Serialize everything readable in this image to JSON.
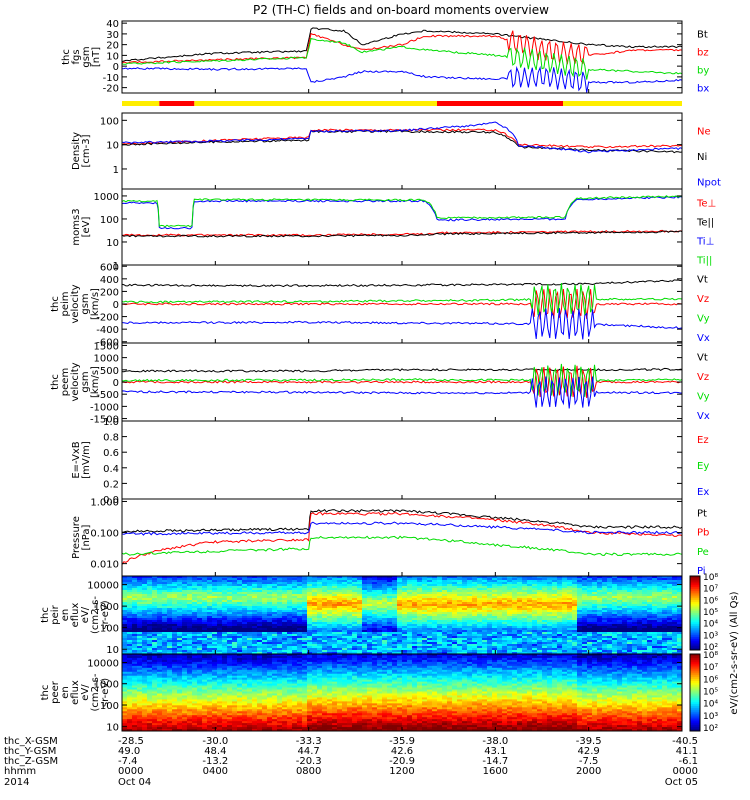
{
  "title": "P2 (TH-C) fields and on-board moments overview",
  "colors": {
    "black": "#000000",
    "red": "#ff0000",
    "green": "#00dd00",
    "blue": "#0000ff",
    "yellow": "#ffee00"
  },
  "panels": [
    {
      "id": "fgs",
      "ylabel": [
        "thc",
        "fgs",
        "gsm",
        "[nT]"
      ],
      "ticks": [
        "40",
        "30",
        "20",
        "10",
        "0",
        "-10",
        "-20"
      ],
      "legend": [
        {
          "text": "Bt",
          "color": "black"
        },
        {
          "text": "bz",
          "color": "red"
        },
        {
          "text": "by",
          "color": "green"
        },
        {
          "text": "bx",
          "color": "blue"
        }
      ]
    },
    {
      "id": "density",
      "ylabel": [
        "Density",
        "[cm-3]"
      ],
      "ticks": [
        "100",
        "10",
        "1"
      ],
      "legend": [
        {
          "text": "Ne",
          "color": "red"
        },
        {
          "text": "Ni",
          "color": "black"
        },
        {
          "text": "Npot",
          "color": "blue"
        }
      ]
    },
    {
      "id": "temp",
      "ylabel": [
        "moms3",
        "[eV]"
      ],
      "ticks": [
        "1000",
        "100",
        "10",
        "1"
      ],
      "legend": [
        {
          "text": "Te⊥",
          "color": "red"
        },
        {
          "text": "Te||",
          "color": "black"
        },
        {
          "text": "Ti⊥",
          "color": "blue"
        },
        {
          "text": "Ti||",
          "color": "green"
        }
      ]
    },
    {
      "id": "peim",
      "ylabel": [
        "thc",
        "peim",
        "velocity",
        "gsm",
        "[km/s]"
      ],
      "ticks": [
        "600",
        "400",
        "200",
        "0",
        "-200",
        "-400",
        "-600"
      ],
      "legend": [
        {
          "text": "Vt",
          "color": "black"
        },
        {
          "text": "Vz",
          "color": "red"
        },
        {
          "text": "Vy",
          "color": "green"
        },
        {
          "text": "Vx",
          "color": "blue"
        }
      ]
    },
    {
      "id": "peem",
      "ylabel": [
        "thc",
        "peem",
        "velocity",
        "gsm",
        "[km/s]"
      ],
      "ticks": [
        "1500",
        "1000",
        "500",
        "0",
        "-500",
        "-1000",
        "-1500"
      ],
      "legend": [
        {
          "text": "Vt",
          "color": "black"
        },
        {
          "text": "Vz",
          "color": "red"
        },
        {
          "text": "Vy",
          "color": "green"
        },
        {
          "text": "Vx",
          "color": "blue"
        }
      ]
    },
    {
      "id": "efield",
      "ylabel": [
        "E=-VxB",
        "[mV/m]"
      ],
      "ticks": [
        "1.0",
        "0.8",
        "0.6",
        "0.4",
        "0.2",
        "0.0"
      ],
      "legend": [
        {
          "text": "Ez",
          "color": "red"
        },
        {
          "text": "Ey",
          "color": "green"
        },
        {
          "text": "Ex",
          "color": "blue"
        }
      ]
    },
    {
      "id": "pressure",
      "ylabel": [
        "Pressure",
        "[nPa]"
      ],
      "ticks": [
        "1.000",
        "0.100",
        "0.010"
      ],
      "legend": [
        {
          "text": "Pt",
          "color": "black"
        },
        {
          "text": "Pb",
          "color": "red"
        },
        {
          "text": "Pe",
          "color": "green"
        },
        {
          "text": "Pi",
          "color": "blue"
        }
      ]
    },
    {
      "id": "peir",
      "ylabel": [
        "thc",
        "peir",
        "en",
        "eflux",
        "eV/",
        "(cm2-s-",
        "sr-eV)"
      ],
      "ticks": [
        "10000",
        "1000",
        "100",
        "10"
      ],
      "legend": []
    },
    {
      "id": "peer",
      "ylabel": [
        "thc",
        "peer",
        "en",
        "eflux",
        "eV/",
        "(cm2-s-",
        "sr-eV)"
      ],
      "ticks": [
        "10000",
        "1000",
        "100",
        "10"
      ],
      "legend": []
    }
  ],
  "colorbar": {
    "top_labels": [
      "10⁸",
      "10⁷",
      "10⁶",
      "10⁵",
      "10⁴",
      "10³",
      "10²"
    ],
    "bottom_labels": [
      "10⁸",
      "10⁷",
      "10⁶",
      "10⁵",
      "10⁴",
      "10³",
      "10²"
    ],
    "unit": "eV/(cm2-s-sr-eV) (All Qs)"
  },
  "xaxis": {
    "row_labels": [
      "thc_X-GSM",
      "thc_Y-GSM",
      "thc_Z-GSM",
      "hhmm",
      "2014"
    ],
    "columns": [
      {
        "x": "-28.5",
        "y": "49.0",
        "z": "-7.4",
        "hhmm": "0000",
        "date": "Oct 04"
      },
      {
        "x": "-30.0",
        "y": "48.4",
        "z": "-13.2",
        "hhmm": "0400",
        "date": ""
      },
      {
        "x": "-33.3",
        "y": "44.7",
        "z": "-20.3",
        "hhmm": "0800",
        "date": ""
      },
      {
        "x": "-35.9",
        "y": "42.6",
        "z": "-20.9",
        "hhmm": "1200",
        "date": ""
      },
      {
        "x": "-38.0",
        "y": "43.1",
        "z": "-14.7",
        "hhmm": "1600",
        "date": ""
      },
      {
        "x": "-39.5",
        "y": "42.9",
        "z": "-7.5",
        "hhmm": "2000",
        "date": ""
      },
      {
        "x": "-40.5",
        "y": "41.1",
        "z": "-6.1",
        "hhmm": "0000",
        "date": "Oct 05"
      }
    ]
  },
  "chart_data": {
    "type": "line",
    "title": "P2 (TH-C) fields and on-board moments overview",
    "x_unit": "hours since 2014-10-04 00:00",
    "xlim": [
      0,
      24
    ],
    "series": [
      {
        "panel": "fgs",
        "name": "Bt",
        "points": [
          [
            0,
            5
          ],
          [
            4,
            12
          ],
          [
            7.9,
            14
          ],
          [
            8.1,
            35
          ],
          [
            9.5,
            33
          ],
          [
            10.3,
            20
          ],
          [
            12,
            30
          ],
          [
            13,
            33
          ],
          [
            16,
            30
          ],
          [
            18,
            25
          ],
          [
            20,
            20
          ],
          [
            22,
            18
          ],
          [
            24,
            18
          ]
        ]
      },
      {
        "panel": "fgs",
        "name": "bz",
        "points": [
          [
            0,
            3
          ],
          [
            4,
            6
          ],
          [
            7.9,
            8
          ],
          [
            8.1,
            30
          ],
          [
            9.5,
            20
          ],
          [
            10.3,
            15
          ],
          [
            12,
            20
          ],
          [
            13,
            28
          ],
          [
            16,
            28
          ],
          [
            18,
            15
          ],
          [
            20,
            10
          ],
          [
            22,
            15
          ],
          [
            24,
            15
          ]
        ]
      },
      {
        "panel": "fgs",
        "name": "by",
        "points": [
          [
            0,
            2
          ],
          [
            4,
            5
          ],
          [
            7.9,
            8
          ],
          [
            8.1,
            25
          ],
          [
            9.5,
            22
          ],
          [
            10.3,
            13
          ],
          [
            12,
            18
          ],
          [
            13,
            15
          ],
          [
            16,
            10
          ],
          [
            18,
            5
          ],
          [
            20,
            -3
          ],
          [
            22,
            -5
          ],
          [
            24,
            -7
          ]
        ]
      },
      {
        "panel": "fgs",
        "name": "bx",
        "points": [
          [
            0,
            -2
          ],
          [
            4,
            -3
          ],
          [
            7.9,
            -2
          ],
          [
            8.1,
            -15
          ],
          [
            9.5,
            -10
          ],
          [
            10.3,
            -5
          ],
          [
            12,
            -5
          ],
          [
            13,
            -10
          ],
          [
            16,
            -12
          ],
          [
            18,
            -10
          ],
          [
            20,
            -15
          ],
          [
            22,
            -15
          ],
          [
            24,
            -13
          ]
        ]
      },
      {
        "panel": "density",
        "name": "Ne",
        "points": [
          [
            0,
            10
          ],
          [
            4,
            15
          ],
          [
            8,
            20
          ],
          [
            8.1,
            40
          ],
          [
            12,
            40
          ],
          [
            16,
            40
          ],
          [
            17,
            10
          ],
          [
            20,
            8
          ],
          [
            24,
            9
          ]
        ]
      },
      {
        "panel": "density",
        "name": "Ni",
        "points": [
          [
            0,
            10
          ],
          [
            4,
            13
          ],
          [
            8,
            15
          ],
          [
            8.1,
            35
          ],
          [
            12,
            35
          ],
          [
            16,
            32
          ],
          [
            17,
            8
          ],
          [
            20,
            6
          ],
          [
            24,
            5
          ]
        ]
      },
      {
        "panel": "density",
        "name": "Npot",
        "points": [
          [
            0,
            12
          ],
          [
            4,
            14
          ],
          [
            8,
            18
          ],
          [
            8.1,
            35
          ],
          [
            12,
            38
          ],
          [
            15,
            60
          ],
          [
            16,
            80
          ],
          [
            17,
            9
          ],
          [
            20,
            5
          ],
          [
            24,
            7
          ]
        ]
      },
      {
        "panel": "temp",
        "name": "Te⊥",
        "points": [
          [
            0,
            20
          ],
          [
            8,
            20
          ],
          [
            13,
            22
          ],
          [
            13.5,
            25
          ],
          [
            24,
            30
          ]
        ]
      },
      {
        "panel": "temp",
        "name": "Te||",
        "points": [
          [
            0,
            18
          ],
          [
            8,
            18
          ],
          [
            13,
            20
          ],
          [
            13.5,
            22
          ],
          [
            24,
            28
          ]
        ]
      },
      {
        "panel": "temp",
        "name": "Ti⊥",
        "points": [
          [
            0,
            500
          ],
          [
            1.5,
            500
          ],
          [
            1.6,
            40
          ],
          [
            3,
            40
          ],
          [
            3.1,
            600
          ],
          [
            13,
            600
          ],
          [
            13.5,
            90
          ],
          [
            19,
            100
          ],
          [
            19.5,
            700
          ],
          [
            24,
            900
          ]
        ]
      },
      {
        "panel": "temp",
        "name": "Ti||",
        "points": [
          [
            0,
            600
          ],
          [
            1.5,
            600
          ],
          [
            1.6,
            50
          ],
          [
            3,
            50
          ],
          [
            3.1,
            700
          ],
          [
            13,
            650
          ],
          [
            13.5,
            110
          ],
          [
            19,
            120
          ],
          [
            19.5,
            800
          ],
          [
            24,
            950
          ]
        ]
      },
      {
        "panel": "peim",
        "name": "Vt",
        "points": [
          [
            0,
            300
          ],
          [
            8,
            290
          ],
          [
            12,
            300
          ],
          [
            16,
            310
          ],
          [
            20,
            320
          ],
          [
            24,
            380
          ]
        ]
      },
      {
        "panel": "peim",
        "name": "Vz",
        "points": [
          [
            0,
            0
          ],
          [
            8,
            0
          ],
          [
            12,
            0
          ],
          [
            16,
            0
          ],
          [
            20,
            0
          ],
          [
            24,
            0
          ]
        ]
      },
      {
        "panel": "peim",
        "name": "Vy",
        "points": [
          [
            0,
            30
          ],
          [
            8,
            40
          ],
          [
            12,
            50
          ],
          [
            16,
            60
          ],
          [
            17.5,
            70
          ],
          [
            24,
            80
          ]
        ]
      },
      {
        "panel": "peim",
        "name": "Vx",
        "points": [
          [
            0,
            -300
          ],
          [
            8,
            -290
          ],
          [
            12,
            -300
          ],
          [
            16,
            -310
          ],
          [
            20,
            -320
          ],
          [
            24,
            -380
          ]
        ]
      },
      {
        "panel": "peem",
        "name": "Vt",
        "points": [
          [
            0,
            450
          ],
          [
            8,
            450
          ],
          [
            12,
            500
          ],
          [
            16,
            500
          ],
          [
            20,
            500
          ],
          [
            24,
            520
          ]
        ]
      },
      {
        "panel": "peem",
        "name": "Vz",
        "points": [
          [
            0,
            0
          ],
          [
            8,
            0
          ],
          [
            12,
            0
          ],
          [
            16,
            0
          ],
          [
            20,
            0
          ],
          [
            24,
            0
          ]
        ]
      },
      {
        "panel": "peem",
        "name": "Vy",
        "points": [
          [
            0,
            60
          ],
          [
            8,
            80
          ],
          [
            12,
            100
          ],
          [
            16,
            80
          ],
          [
            20,
            60
          ],
          [
            24,
            100
          ]
        ]
      },
      {
        "panel": "peem",
        "name": "Vx",
        "points": [
          [
            0,
            -400
          ],
          [
            8,
            -420
          ],
          [
            12,
            -450
          ],
          [
            16,
            -450
          ],
          [
            20,
            -420
          ],
          [
            24,
            -450
          ]
        ]
      },
      {
        "panel": "pressure",
        "name": "Pt",
        "points": [
          [
            0,
            0.11
          ],
          [
            8,
            0.13
          ],
          [
            8.1,
            0.5
          ],
          [
            12,
            0.5
          ],
          [
            16,
            0.3
          ],
          [
            20,
            0.15
          ],
          [
            24,
            0.15
          ]
        ]
      },
      {
        "panel": "pressure",
        "name": "Pb",
        "points": [
          [
            0,
            0.01
          ],
          [
            4,
            0.05
          ],
          [
            8,
            0.06
          ],
          [
            8.1,
            0.4
          ],
          [
            12,
            0.4
          ],
          [
            16,
            0.25
          ],
          [
            20,
            0.1
          ],
          [
            24,
            0.08
          ]
        ]
      },
      {
        "panel": "pressure",
        "name": "Pe",
        "points": [
          [
            0,
            0.02
          ],
          [
            8,
            0.03
          ],
          [
            8.1,
            0.07
          ],
          [
            12,
            0.07
          ],
          [
            16,
            0.04
          ],
          [
            20,
            0.02
          ],
          [
            24,
            0.02
          ]
        ]
      },
      {
        "panel": "pressure",
        "name": "Pi",
        "points": [
          [
            0,
            0.09
          ],
          [
            8,
            0.1
          ],
          [
            8.1,
            0.2
          ],
          [
            12,
            0.2
          ],
          [
            16,
            0.15
          ],
          [
            20,
            0.1
          ],
          [
            24,
            0.1
          ]
        ]
      }
    ],
    "mode_bar": [
      {
        "start": 0,
        "end": 1.6,
        "color": "yellow"
      },
      {
        "start": 1.6,
        "end": 3.1,
        "color": "red"
      },
      {
        "start": 3.1,
        "end": 13.5,
        "color": "yellow"
      },
      {
        "start": 13.5,
        "end": 18.9,
        "color": "red"
      },
      {
        "start": 18.9,
        "end": 24,
        "color": "yellow"
      }
    ]
  }
}
